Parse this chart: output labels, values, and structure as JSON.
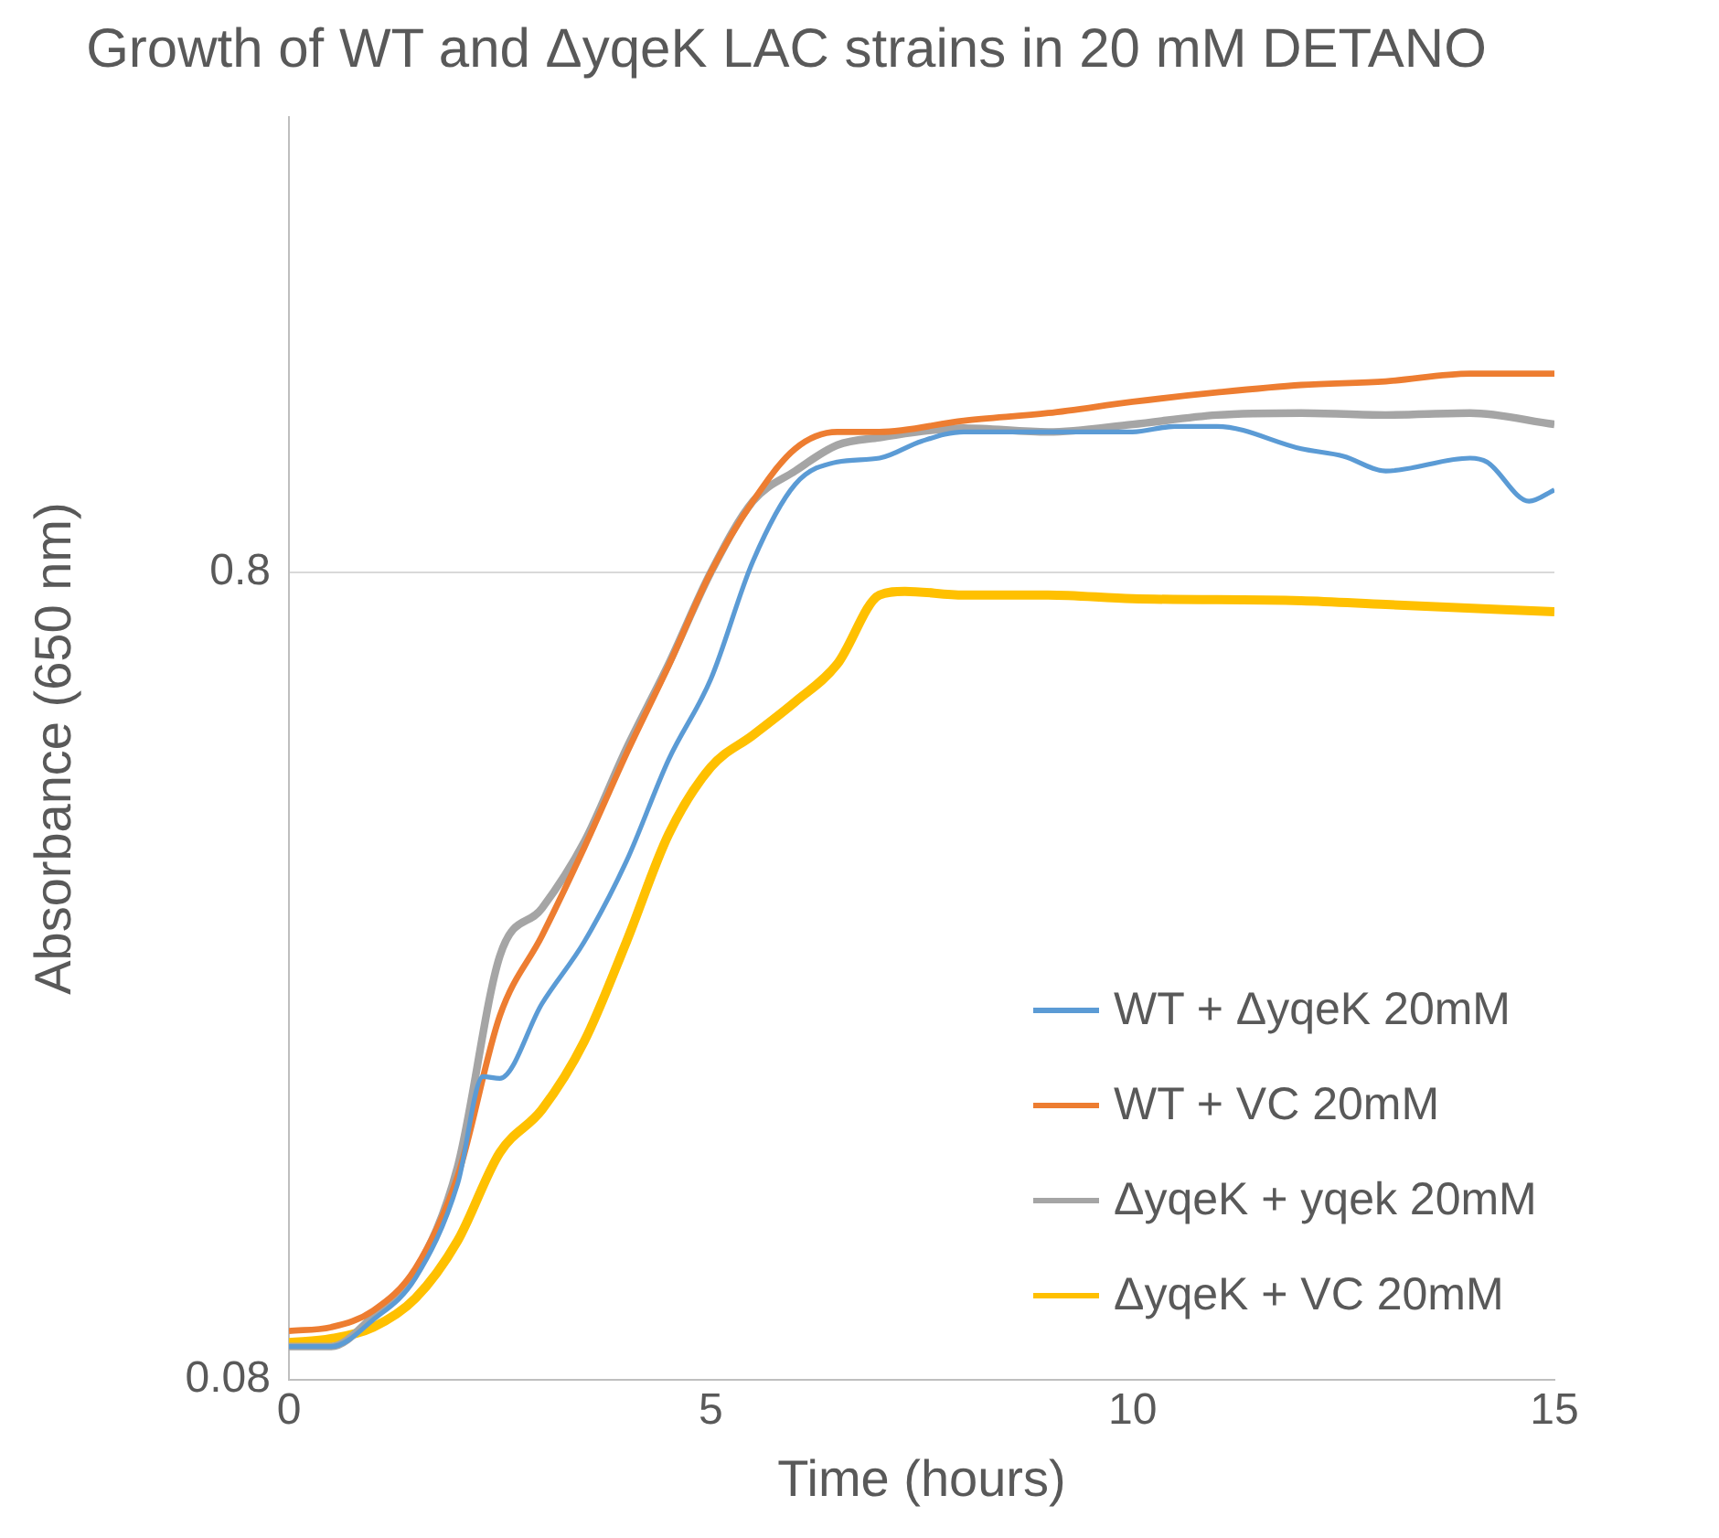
{
  "chart_data": {
    "type": "line",
    "title": "Growth of WT and ΔyqeK LAC strains in 20 mM DETANO",
    "xlabel": "Time (hours)",
    "ylabel": "Absorbance (650 nm)",
    "xlim": [
      0,
      15
    ],
    "xticks": [
      0,
      5,
      10,
      15
    ],
    "ylim": [
      0.08,
      2.93
    ],
    "yticks": [
      0.08,
      0.8
    ],
    "log": "y",
    "grid": "y",
    "legend": "bottom right",
    "marker": "none",
    "line_style": "solid",
    "series": [
      {
        "name": "WT + ΔyqeK 20mM",
        "color": "#5b9bd5",
        "x": [
          0,
          0.5,
          1,
          1.5,
          2,
          2.3,
          2.5,
          3,
          3.5,
          4,
          4.5,
          5,
          5.5,
          6,
          6.5,
          7,
          7.5,
          8,
          9,
          10,
          10.5,
          11,
          12,
          12.5,
          13,
          14,
          14.2,
          14.7,
          15
        ],
        "values": [
          0.088,
          0.088,
          0.095,
          0.107,
          0.14,
          0.19,
          0.189,
          0.234,
          0.279,
          0.351,
          0.469,
          0.59,
          0.826,
          1.028,
          1.096,
          1.108,
          1.163,
          1.194,
          1.194,
          1.194,
          1.213,
          1.213,
          1.138,
          1.114,
          1.068,
          1.108,
          1.096,
          0.98,
          1.012
        ]
      },
      {
        "name": "WT + VC 20mM",
        "color": "#ed7d31",
        "x": [
          0,
          0.5,
          1,
          1.5,
          2,
          2.5,
          3,
          3.5,
          4,
          4.5,
          5,
          5.5,
          6,
          6.5,
          7,
          8,
          9,
          10,
          11,
          12,
          13,
          14,
          15
        ],
        "values": [
          0.092,
          0.093,
          0.0975,
          0.11,
          0.143,
          0.226,
          0.284,
          0.365,
          0.477,
          0.613,
          0.8,
          0.98,
          1.138,
          1.194,
          1.194,
          1.233,
          1.26,
          1.301,
          1.336,
          1.365,
          1.379,
          1.41,
          1.41
        ]
      },
      {
        "name": "ΔyqeK + yqek 20mM",
        "color": "#a5a5a5",
        "x": [
          0,
          0.5,
          1,
          1.5,
          2,
          2.5,
          3,
          3.5,
          4,
          4.5,
          5,
          5.5,
          6,
          6.5,
          7,
          8,
          9,
          10,
          11,
          12,
          13,
          14,
          15
        ],
        "values": [
          0.088,
          0.088,
          0.096,
          0.109,
          0.147,
          0.268,
          0.307,
          0.371,
          0.484,
          0.616,
          0.8,
          0.98,
          1.068,
          1.15,
          1.175,
          1.207,
          1.194,
          1.22,
          1.253,
          1.26,
          1.253,
          1.26,
          1.22
        ]
      },
      {
        "name": "ΔyqeK + VC 20mM",
        "color": "#ffc000",
        "x": [
          0,
          0.5,
          1,
          1.5,
          2,
          2.5,
          3,
          3.5,
          4,
          4.5,
          5,
          5.5,
          6,
          6.5,
          7,
          7.3,
          8,
          9,
          10,
          12,
          13,
          15
        ],
        "values": [
          0.089,
          0.09,
          0.093,
          0.101,
          0.119,
          0.153,
          0.173,
          0.21,
          0.279,
          0.379,
          0.459,
          0.503,
          0.553,
          0.616,
          0.75,
          0.758,
          0.75,
          0.75,
          0.742,
          0.738,
          0.73,
          0.715
        ]
      }
    ]
  }
}
